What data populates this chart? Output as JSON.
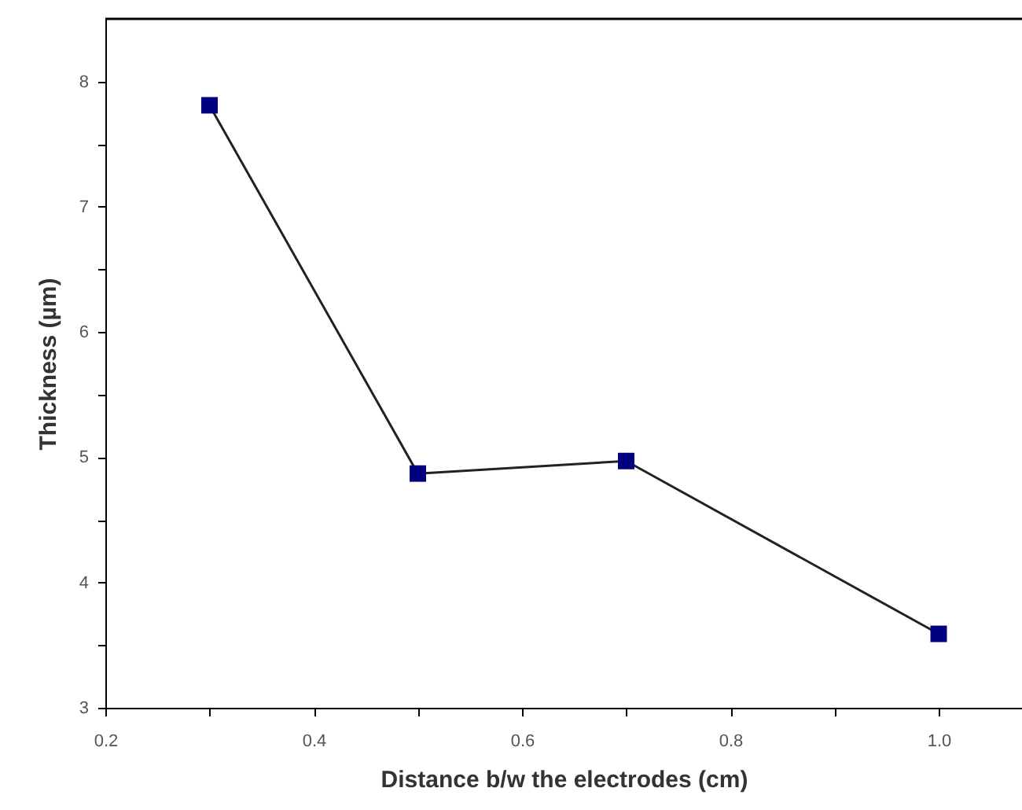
{
  "chart_data": {
    "type": "line",
    "xlabel": "Distance b/w the electrodes (cm)",
    "ylabel": "Thickness (µm)",
    "x": [
      0.3,
      0.5,
      0.7,
      1.0
    ],
    "series": [
      {
        "color": "#000080",
        "values": [
          7.81,
          4.87,
          4.97,
          3.59
        ]
      }
    ],
    "xlim": [
      0.2,
      1.08
    ],
    "ylim": [
      3,
      8.5
    ],
    "xticks": [
      {
        "value": 0.2,
        "label": "0.2"
      },
      {
        "value": 0.3,
        "label": null
      },
      {
        "value": 0.4,
        "label": "0.4"
      },
      {
        "value": 0.5,
        "label": null
      },
      {
        "value": 0.6,
        "label": "0.6"
      },
      {
        "value": 0.7,
        "label": null
      },
      {
        "value": 0.8,
        "label": "0.8"
      },
      {
        "value": 0.9,
        "label": null
      },
      {
        "value": 1.0,
        "label": "1.0"
      }
    ],
    "yticks": [
      3,
      {
        "value": 3.5,
        "label": null
      },
      4,
      {
        "value": 4.5,
        "label": null
      },
      5,
      {
        "value": 5.5,
        "label": null
      },
      6,
      {
        "value": 6.5,
        "label": null
      },
      7,
      {
        "value": 7.5,
        "label": null
      },
      8
    ],
    "marker": "square",
    "line_style": "solid",
    "grid": false
  }
}
